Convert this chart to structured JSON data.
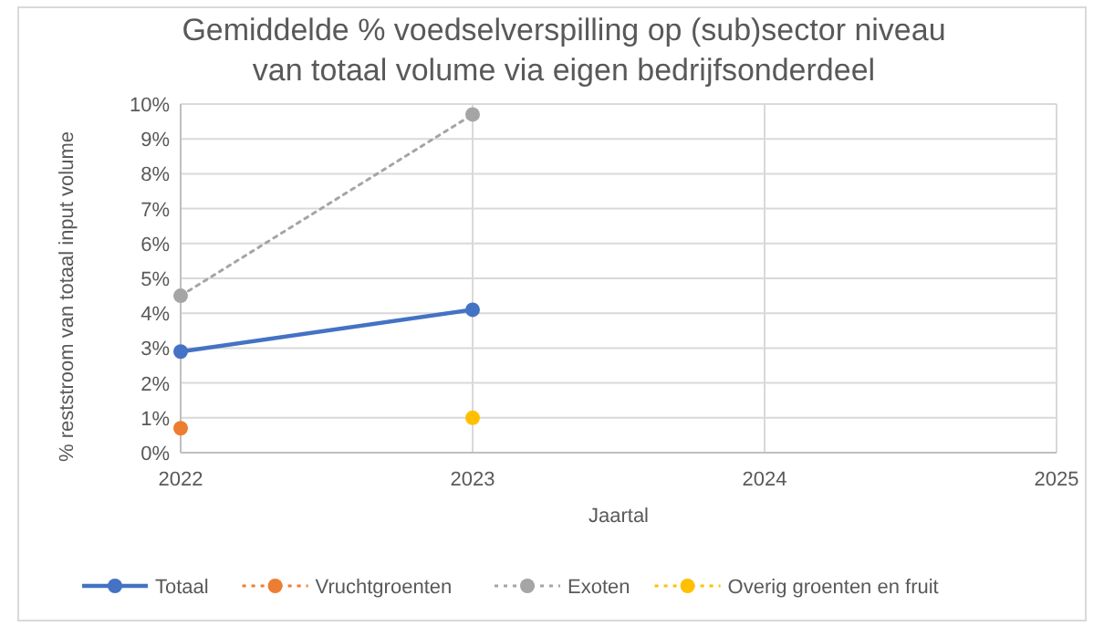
{
  "chart_data": {
    "type": "line",
    "title": "Gemiddelde % voedselverspilling op (sub)sector niveau\nvan totaal volume via eigen bedrijfsonderdeel",
    "xlabel": "Jaartal",
    "ylabel": "% reststroom van totaal input volume",
    "x": [
      2022,
      2023
    ],
    "xlim": [
      2022,
      2025
    ],
    "xticks": [
      2022,
      2023,
      2024,
      2025
    ],
    "ylim": [
      0,
      10
    ],
    "yticks": [
      {
        "value": 0,
        "label": "0%"
      },
      {
        "value": 1,
        "label": "1%"
      },
      {
        "value": 2,
        "label": "2%"
      },
      {
        "value": 3,
        "label": "3%"
      },
      {
        "value": 4,
        "label": "4%"
      },
      {
        "value": 5,
        "label": "5%"
      },
      {
        "value": 6,
        "label": "6%"
      },
      {
        "value": 7,
        "label": "7%"
      },
      {
        "value": 8,
        "label": "8%"
      },
      {
        "value": 9,
        "label": "9%"
      },
      {
        "value": 10,
        "label": "10%"
      }
    ],
    "grid": true,
    "legend": "bottom",
    "marker": "circle",
    "series": [
      {
        "name": "Totaal",
        "color": "#4472c4",
        "values": [
          2.9,
          4.1
        ],
        "line_style": "solid"
      },
      {
        "name": "Vruchtgroenten",
        "color": "#ed7d31",
        "values": [
          0.7,
          null
        ],
        "line_style": "dotted"
      },
      {
        "name": "Exoten",
        "color": "#a5a5a5",
        "values": [
          4.5,
          9.7
        ],
        "line_style": "dotted"
      },
      {
        "name": "Overig groenten en fruit",
        "color": "#ffc000",
        "values": [
          null,
          1.0
        ],
        "line_style": "dotted"
      }
    ]
  }
}
